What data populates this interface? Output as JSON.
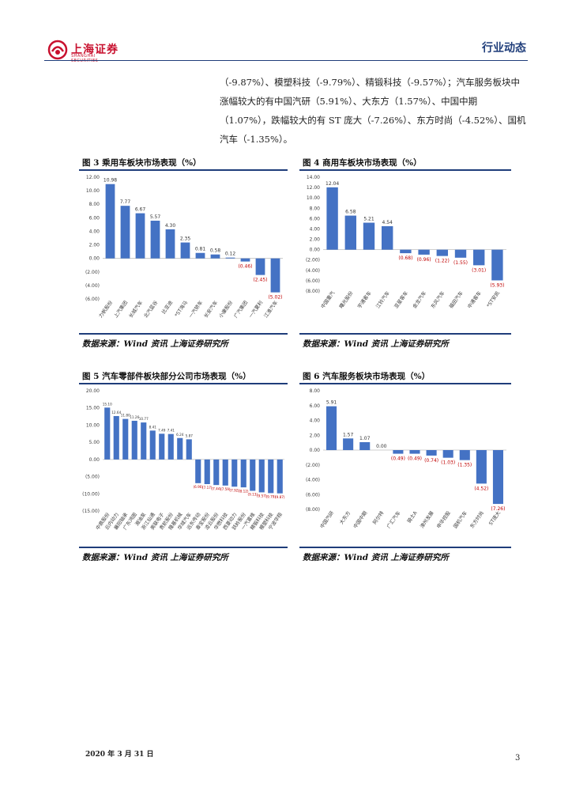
{
  "header": {
    "logo_text": "上海证券",
    "logo_sub": "SHANGHAI SECURITIES",
    "section": "行业动态"
  },
  "paragraph": "（-9.87%）、模塑科技（-9.79%）、精锻科技（-9.57%）；汽车服务板块中涨幅较大的有中国汽研（5.91%）、大东方（1.57%）、中国中期（1.07%），跌幅较大的有 ST 庞大（-7.26%）、东方时尚（-4.52%）、国机汽车（-1.35%）。",
  "figures": [
    {
      "title": "图  3  乘用车板块市场表现（%）",
      "source": "数据来源：Wind 资讯  上海证券研究所"
    },
    {
      "title": "图  4  商用车板块市场表现（%）",
      "source": "数据来源：Wind 资讯  上海证券研究所"
    },
    {
      "title": "图  5  汽车零部件板块部分公司市场表现（%）",
      "source": "数据来源：Wind 资讯  上海证券研究所"
    },
    {
      "title": "图  6  汽车服务板块市场表现（%）",
      "source": "数据来源：Wind 资讯  上海证券研究所"
    }
  ],
  "chart_data": [
    {
      "type": "bar",
      "categories": [
        "力帆股份",
        "上汽集团",
        "长城汽车",
        "北汽蓝谷",
        "比亚迪",
        "*ST海马",
        "一汽轿车",
        "长安汽车",
        "小康股份",
        "广汽集团",
        "一汽夏利",
        "江淮汽车"
      ],
      "values": [
        10.98,
        7.77,
        6.67,
        5.57,
        4.3,
        2.35,
        0.81,
        0.58,
        0.12,
        -0.46,
        -2.45,
        -5.02
      ],
      "labels": [
        "10.98",
        "7.77",
        "6.67",
        "5.57",
        "4.30",
        "2.35",
        "0.81",
        "0.58",
        "0.12",
        "(0.46)",
        "(2.45)",
        "(5.02)"
      ],
      "ylim": [
        -6,
        12
      ],
      "yticks": [
        12,
        10,
        8,
        6,
        4,
        2,
        0,
        -2,
        -4,
        -6
      ],
      "yticklabels": [
        "12.00",
        "10.00",
        "8.00",
        "6.00",
        "4.00",
        "2.00",
        "0.00",
        "(2.00)",
        "(4.00)",
        "(6.00)"
      ],
      "colors": {
        "positive": "#4472c4",
        "negative": "#4472c4",
        "neg_label": "#c00000"
      }
    },
    {
      "type": "bar",
      "categories": [
        "中国重汽",
        "曙光股份",
        "宇通客车",
        "江铃汽车",
        "亚星客车",
        "金龙汽车",
        "东风汽车",
        "福田汽车",
        "中通客车",
        "*ST安凯"
      ],
      "values": [
        12.04,
        6.58,
        5.21,
        4.54,
        -0.68,
        -0.96,
        -1.22,
        -1.55,
        -3.01,
        -5.93
      ],
      "labels": [
        "12.04",
        "6.58",
        "5.21",
        "4.54",
        "(0.68)",
        "(0.96)",
        "(1.22)",
        "(1.55)",
        "(3.01)",
        "(5.93)"
      ],
      "ylim": [
        -8,
        14
      ],
      "yticks": [
        14,
        12,
        10,
        8,
        6,
        4,
        2,
        0,
        -2,
        -4,
        -6,
        -8
      ],
      "yticklabels": [
        "14.00",
        "12.00",
        "10.00",
        "8.00",
        "6.00",
        "4.00",
        "2.00",
        "0.00",
        "(2.00)",
        "(4.00)",
        "(6.00)",
        "(8.00)"
      ],
      "colors": {
        "positive": "#4472c4",
        "negative": "#4472c4",
        "neg_label": "#c00000"
      }
    },
    {
      "type": "bar",
      "categories": [
        "中鼎股份",
        "云内动力",
        "襄阳轴承",
        "广东鸿图",
        "湘油泵",
        "浙江仙通",
        "奥联电子",
        "贵航股份",
        "隆基机械",
        "华域汽车",
        "远东传动",
        "泰宝股份",
        "凌云股份",
        "华懋科技",
        "西菱动力",
        "跃岭股份",
        "一汽富维",
        "精锻科技",
        "模塑科技",
        "宁波华翔"
      ],
      "values": [
        15.1,
        12.64,
        11.8,
        11.26,
        10.77,
        8.41,
        7.49,
        7.41,
        6.24,
        5.87,
        -6.9,
        -7.17,
        -7.44,
        -7.59,
        -7.92,
        -8.12,
        -9.13,
        -9.57,
        -9.79,
        -9.87
      ],
      "labels": [
        "15.10",
        "12.64",
        "11.80",
        "11.26",
        "10.77",
        "8.41",
        "7.49",
        "7.41",
        "6.24",
        "5.87",
        "(6.90)",
        "(7.17)",
        "(7.44)",
        "(7.59)",
        "(7.92)",
        "(8.12)",
        "(9.13)",
        "(9.57)",
        "(9.79)",
        "(9.87)"
      ],
      "ylim": [
        -15,
        20
      ],
      "yticks": [
        20,
        15,
        10,
        5,
        0,
        -5,
        -10,
        -15
      ],
      "yticklabels": [
        "20.00",
        "15.00",
        "10.00",
        "5.00",
        "0.00",
        "(5.00)",
        "(10.00)",
        "(15.00)"
      ],
      "colors": {
        "positive": "#4472c4",
        "negative": "#4472c4",
        "neg_label": "#c00000"
      }
    },
    {
      "type": "bar",
      "categories": [
        "中国汽研",
        "大东方",
        "中国中期",
        "阿尔特",
        "广汇汽车",
        "骑士A",
        "漳州发展",
        "申华控股",
        "国机汽车",
        "东方时尚",
        "ST庞大"
      ],
      "values": [
        5.91,
        1.57,
        1.07,
        0.0,
        -0.49,
        -0.49,
        -0.74,
        -1.03,
        -1.35,
        -4.52,
        -7.26
      ],
      "labels": [
        "5.91",
        "1.57",
        "1.07",
        "0.00",
        "(0.49)",
        "(0.49)",
        "(0.74)",
        "(1.03)",
        "(1.35)",
        "(4.52)",
        "(7.26)"
      ],
      "ylim": [
        -8,
        8
      ],
      "yticks": [
        8,
        6,
        4,
        2,
        0,
        -2,
        -4,
        -6,
        -8
      ],
      "yticklabels": [
        "8.00",
        "6.00",
        "4.00",
        "2.00",
        "0.00",
        "(2.00)",
        "(4.00)",
        "(6.00)",
        "(8.00)"
      ],
      "colors": {
        "positive": "#4472c4",
        "negative": "#4472c4",
        "neg_label": "#c00000"
      }
    }
  ],
  "footer": {
    "date": "2020 年 3 月 31 日",
    "page": "3"
  }
}
